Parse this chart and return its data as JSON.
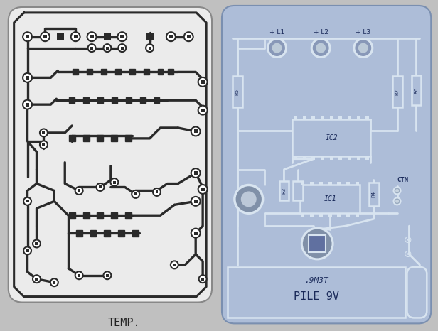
{
  "outer_bg": "#c0c0c0",
  "left_board_color": "#ebebeb",
  "right_board_color": "#adbdd8",
  "left_board_edge": "#888888",
  "right_board_edge": "#7a8fb0",
  "trace_color_left": "#2a2a2a",
  "trace_color_right": "#d8e4f0",
  "component_label_color": "#1a2a5a",
  "left_label": "TEMP.",
  "right_label": "PILE 9V",
  "right_sublabel": ".9M3T",
  "fig_width": 6.16,
  "fig_height": 4.66,
  "dpi": 100
}
